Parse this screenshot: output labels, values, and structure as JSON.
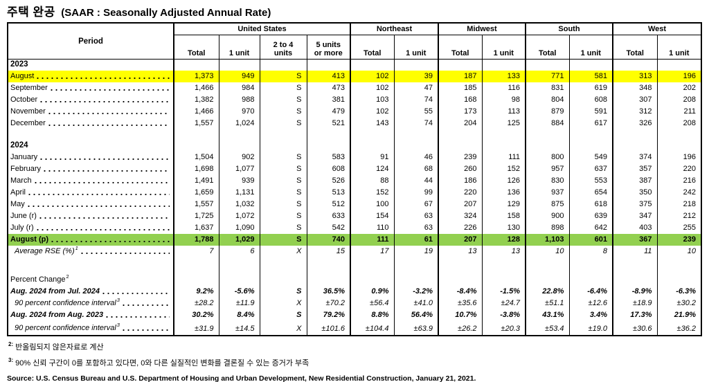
{
  "title": {
    "main": "주택 완공",
    "sub": "(SAAR : Seasonally Adjusted Annual Rate)"
  },
  "colors": {
    "highlight_yellow": "#FFFF00",
    "highlight_green": "#92D050"
  },
  "table": {
    "period_header": "Period",
    "groups": [
      {
        "label": "United States",
        "columns": [
          "Total",
          "1 unit",
          "2 to 4\nunits",
          "5 units\nor more"
        ]
      },
      {
        "label": "Northeast",
        "columns": [
          "Total",
          "1 unit"
        ]
      },
      {
        "label": "Midwest",
        "columns": [
          "Total",
          "1 unit"
        ]
      },
      {
        "label": "South",
        "columns": [
          "Total",
          "1 unit"
        ]
      },
      {
        "label": "West",
        "columns": [
          "Total",
          "1 unit"
        ]
      }
    ],
    "rows": [
      {
        "type": "year",
        "label": "2023"
      },
      {
        "type": "data",
        "label": "August",
        "highlight": "yellow",
        "values": [
          "1,373",
          "949",
          "S",
          "413",
          "102",
          "39",
          "187",
          "133",
          "771",
          "581",
          "313",
          "196"
        ]
      },
      {
        "type": "data",
        "label": "September",
        "values": [
          "1,466",
          "984",
          "S",
          "473",
          "102",
          "47",
          "185",
          "116",
          "831",
          "619",
          "348",
          "202"
        ]
      },
      {
        "type": "data",
        "label": "October",
        "values": [
          "1,382",
          "988",
          "S",
          "381",
          "103",
          "74",
          "168",
          "98",
          "804",
          "608",
          "307",
          "208"
        ]
      },
      {
        "type": "data",
        "label": "November",
        "values": [
          "1,466",
          "970",
          "S",
          "479",
          "102",
          "55",
          "173",
          "113",
          "879",
          "591",
          "312",
          "211"
        ]
      },
      {
        "type": "data",
        "label": "December",
        "values": [
          "1,557",
          "1,024",
          "S",
          "521",
          "143",
          "74",
          "204",
          "125",
          "884",
          "617",
          "326",
          "208"
        ]
      },
      {
        "type": "spacer1"
      },
      {
        "type": "year",
        "label": "2024"
      },
      {
        "type": "data",
        "label": "January",
        "values": [
          "1,504",
          "902",
          "S",
          "583",
          "91",
          "46",
          "239",
          "111",
          "800",
          "549",
          "374",
          "196"
        ]
      },
      {
        "type": "data",
        "label": "February",
        "values": [
          "1,698",
          "1,077",
          "S",
          "608",
          "124",
          "68",
          "260",
          "152",
          "957",
          "637",
          "357",
          "220"
        ]
      },
      {
        "type": "data",
        "label": "March",
        "values": [
          "1,491",
          "939",
          "S",
          "526",
          "88",
          "44",
          "186",
          "126",
          "830",
          "553",
          "387",
          "216"
        ]
      },
      {
        "type": "data",
        "label": "April",
        "values": [
          "1,659",
          "1,131",
          "S",
          "513",
          "152",
          "99",
          "220",
          "136",
          "937",
          "654",
          "350",
          "242"
        ]
      },
      {
        "type": "data",
        "label": "May",
        "values": [
          "1,557",
          "1,032",
          "S",
          "512",
          "100",
          "67",
          "207",
          "129",
          "875",
          "618",
          "375",
          "218"
        ]
      },
      {
        "type": "data",
        "label": "June (r)",
        "values": [
          "1,725",
          "1,072",
          "S",
          "633",
          "154",
          "63",
          "324",
          "158",
          "900",
          "639",
          "347",
          "212"
        ]
      },
      {
        "type": "data",
        "label": "July (r)",
        "values": [
          "1,637",
          "1,090",
          "S",
          "542",
          "110",
          "63",
          "226",
          "130",
          "898",
          "642",
          "403",
          "255"
        ]
      },
      {
        "type": "data",
        "label": "August (p)",
        "highlight": "green",
        "values": [
          "1,788",
          "1,029",
          "S",
          "740",
          "111",
          "61",
          "207",
          "128",
          "1,103",
          "601",
          "367",
          "239"
        ]
      },
      {
        "type": "data",
        "label": "Average RSE (%)",
        "sup": "1",
        "style": "it",
        "indent": true,
        "values": [
          "7",
          "6",
          "X",
          "15",
          "17",
          "19",
          "13",
          "13",
          "10",
          "8",
          "11",
          "10"
        ]
      },
      {
        "type": "spacer2"
      },
      {
        "type": "section",
        "label": "Percent Change",
        "sup": "2"
      },
      {
        "type": "data",
        "label": "Aug. 2024 from Jul. 2024",
        "style": "bi",
        "values": [
          "9.2%",
          "-5.6%",
          "S",
          "36.5%",
          "0.9%",
          "-3.2%",
          "-8.4%",
          "-1.5%",
          "22.8%",
          "-6.4%",
          "-8.9%",
          "-6.3%"
        ]
      },
      {
        "type": "data",
        "label": "90 percent confidence interval",
        "sup": "3",
        "style": "it",
        "indent": true,
        "values": [
          "±28.2",
          "±11.9",
          "X",
          "±70.2",
          "±56.4",
          "±41.0",
          "±35.6",
          "±24.7",
          "±51.1",
          "±12.6",
          "±18.9",
          "±30.2"
        ]
      },
      {
        "type": "data",
        "label": "Aug. 2024 from Aug. 2023",
        "style": "bi",
        "values": [
          "30.2%",
          "8.4%",
          "S",
          "79.2%",
          "8.8%",
          "56.4%",
          "10.7%",
          "-3.8%",
          "43.1%",
          "3.4%",
          "17.3%",
          "21.9%"
        ]
      },
      {
        "type": "data",
        "label": "90 percent confidence interval",
        "sup": "3",
        "style": "it",
        "indent": true,
        "last": true,
        "values": [
          "±31.9",
          "±14.5",
          "X",
          "±101.6",
          "±104.4",
          "±63.9",
          "±26.2",
          "±20.3",
          "±53.4",
          "±19.0",
          "±30.6",
          "±36.2"
        ]
      }
    ]
  },
  "footnotes": [
    {
      "marker": "2:",
      "text": "반올림되지 않은자료로 계산"
    },
    {
      "marker": "3:",
      "text": "90% 신뢰 구간이 0를 포함하고 있다면, 0와 다른 실질적인 변화를 결론질 수 있는 증거가 부족"
    }
  ],
  "source": "Source: U.S. Census Bureau and U.S. Department of Housing and Urban Development, New Residential Construction, January 21, 2021."
}
